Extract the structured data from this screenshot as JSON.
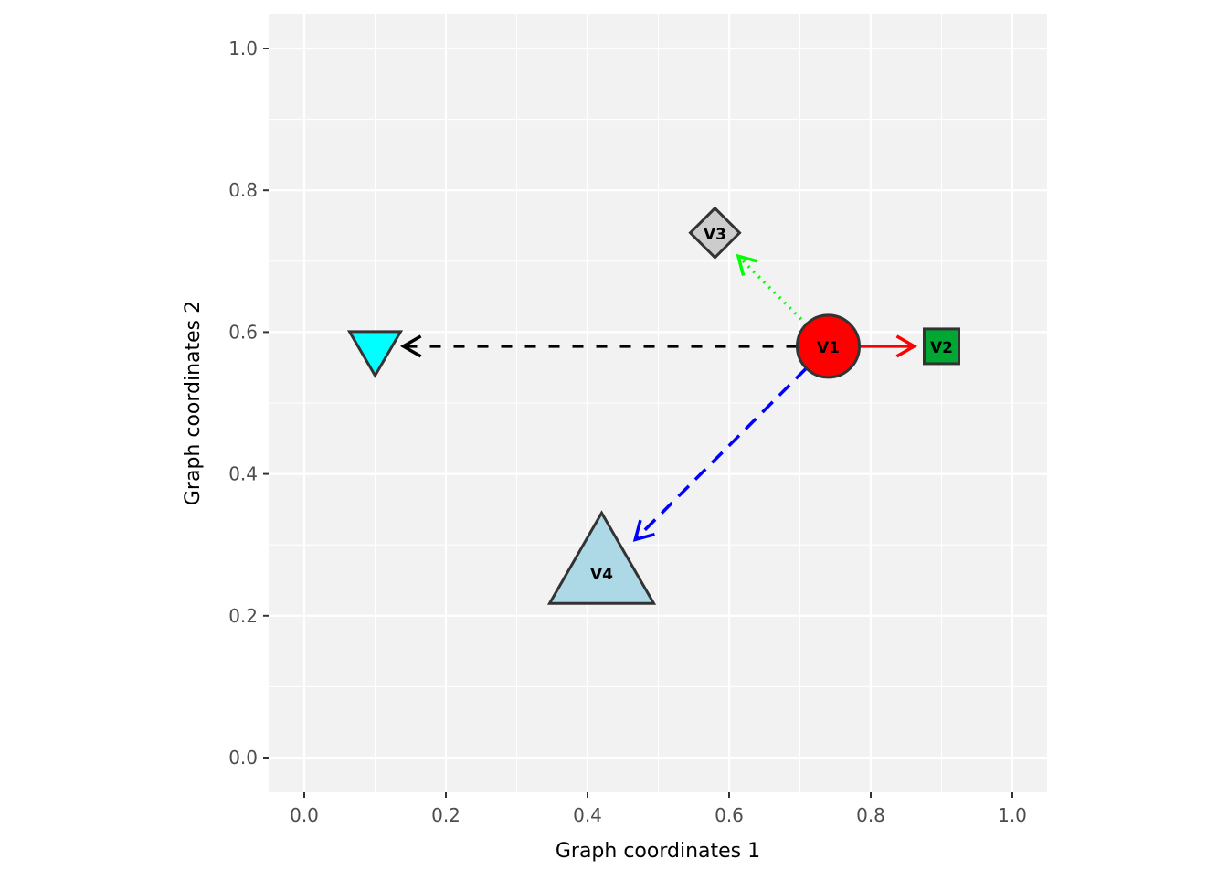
{
  "chart_data": {
    "type": "scatter",
    "subtype": "network-graph",
    "xlabel": "Graph coordinates 1",
    "ylabel": "Graph coordinates 2",
    "xlim": [
      -0.05,
      1.05
    ],
    "ylim": [
      -0.05,
      1.05
    ],
    "xticks": [
      0.0,
      0.2,
      0.4,
      0.6,
      0.8,
      1.0
    ],
    "yticks": [
      0.0,
      0.2,
      0.4,
      0.6,
      0.8,
      1.0
    ],
    "xtick_labels": [
      "0.0",
      "0.2",
      "0.4",
      "0.6",
      "0.8",
      "1.0"
    ],
    "ytick_labels": [
      "0.0",
      "0.2",
      "0.4",
      "0.6",
      "0.8",
      "1.0"
    ],
    "grid": true,
    "nodes": [
      {
        "id": "V1",
        "label": "V1",
        "x": 0.74,
        "y": 0.58,
        "shape": "circle",
        "fill": "#FF0000"
      },
      {
        "id": "V2",
        "label": "V2",
        "x": 0.9,
        "y": 0.58,
        "shape": "square",
        "fill": "#00A833"
      },
      {
        "id": "V3",
        "label": "V3",
        "x": 0.58,
        "y": 0.74,
        "shape": "diamond",
        "fill": "#CCCCCC"
      },
      {
        "id": "V4",
        "label": "V4",
        "x": 0.42,
        "y": 0.26,
        "shape": "triangle-up",
        "fill": "#ADD8E6"
      },
      {
        "id": "V5",
        "label": "",
        "x": 0.1,
        "y": 0.58,
        "shape": "triangle-down",
        "fill": "#00FFFF"
      }
    ],
    "edges": [
      {
        "from": "V1",
        "to": "V2",
        "color": "#FF0000",
        "linetype": "solid"
      },
      {
        "from": "V1",
        "to": "V3",
        "color": "#00FF00",
        "linetype": "dotted"
      },
      {
        "from": "V1",
        "to": "V5",
        "color": "#000000",
        "linetype": "dashed"
      },
      {
        "from": "V1",
        "to": "V4",
        "color": "#0000FF",
        "linetype": "longdash"
      }
    ]
  }
}
